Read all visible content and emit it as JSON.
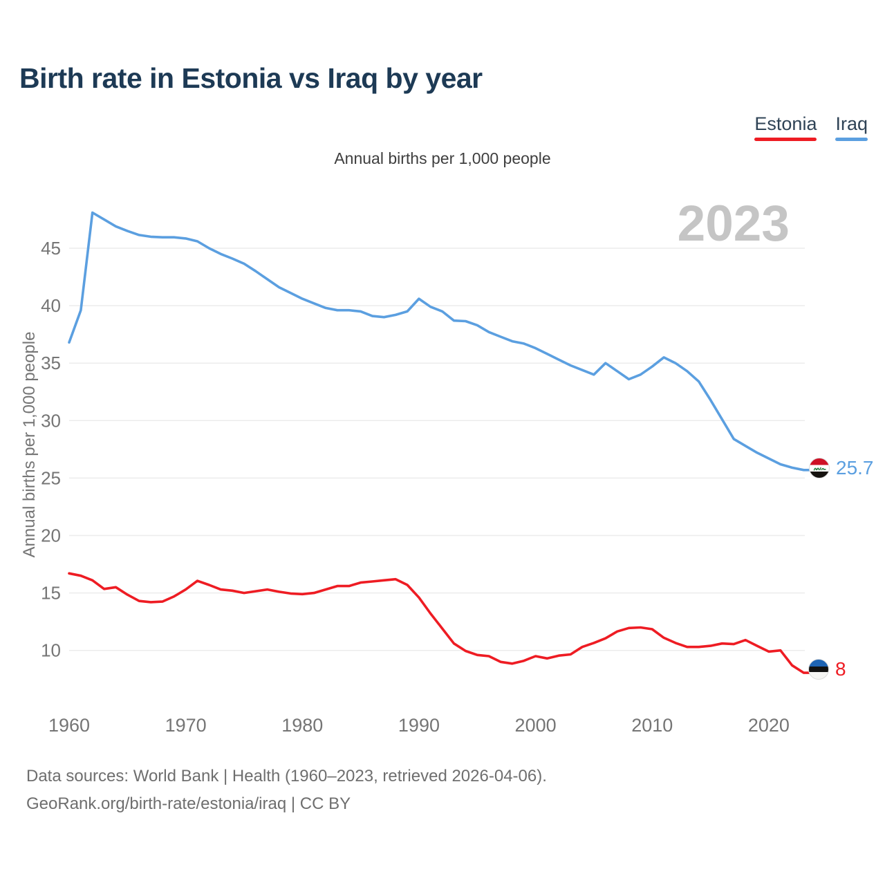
{
  "title": "Birth rate in Estonia vs Iraq by year",
  "subtitle": "Annual births per 1,000 people",
  "watermark_year": "2023",
  "y_axis_title": "Annual births per 1,000 people",
  "legend": {
    "items": [
      {
        "label": "Estonia",
        "color": "#EE1C23"
      },
      {
        "label": "Iraq",
        "color": "#5B9FE0"
      }
    ]
  },
  "end_labels": {
    "iraq": {
      "value": "25.7",
      "flag": "iraq-flag"
    },
    "estonia": {
      "value": "8",
      "flag": "estonia-flag"
    }
  },
  "footer": {
    "line1": "Data sources: World Bank | Health (1960–2023, retrieved 2026-04-06).",
    "line2": "GeoRank.org/birth-rate/estonia/iraq | CC BY"
  },
  "colors": {
    "iraq_line": "#5B9FE0",
    "estonia_line": "#EE1C23",
    "gridline": "#ECECEC",
    "tick_text": "#757575"
  },
  "chart_data": {
    "type": "line",
    "title": "Birth rate in Estonia vs Iraq by year",
    "subtitle": "Annual births per 1,000 people",
    "ylabel": "Annual births per 1,000 people",
    "xlabel": "",
    "grid": "horizontal",
    "legend_position": "top-right",
    "ylim": [
      6.5,
      49.5
    ],
    "yticks": [
      10,
      15,
      20,
      25,
      30,
      35,
      40,
      45
    ],
    "xticks": [
      1960,
      1970,
      1980,
      1990,
      2000,
      2010,
      2020
    ],
    "x": [
      1960,
      1961,
      1962,
      1963,
      1964,
      1965,
      1966,
      1967,
      1968,
      1969,
      1970,
      1971,
      1972,
      1973,
      1974,
      1975,
      1976,
      1977,
      1978,
      1979,
      1980,
      1981,
      1982,
      1983,
      1984,
      1985,
      1986,
      1987,
      1988,
      1989,
      1990,
      1991,
      1992,
      1993,
      1994,
      1995,
      1996,
      1997,
      1998,
      1999,
      2000,
      2001,
      2002,
      2003,
      2004,
      2005,
      2006,
      2007,
      2008,
      2009,
      2010,
      2011,
      2012,
      2013,
      2014,
      2015,
      2016,
      2017,
      2018,
      2019,
      2020,
      2021,
      2022,
      2023
    ],
    "series": [
      {
        "name": "Iraq",
        "color": "#5B9FE0",
        "end_value_label": "25.7",
        "values": [
          36.8,
          39.6,
          48.1,
          47.5,
          46.9,
          46.5,
          46.15,
          46.0,
          45.95,
          45.95,
          45.85,
          45.6,
          45.0,
          44.5,
          44.1,
          43.65,
          43.0,
          42.3,
          41.6,
          41.1,
          40.6,
          40.2,
          39.8,
          39.6,
          39.6,
          39.5,
          39.1,
          39.0,
          39.2,
          39.5,
          40.6,
          39.9,
          39.5,
          38.7,
          38.65,
          38.3,
          37.7,
          37.3,
          36.9,
          36.7,
          36.3,
          35.8,
          35.3,
          34.8,
          34.4,
          34.0,
          35.0,
          34.3,
          33.6,
          34.0,
          34.7,
          35.5,
          35.0,
          34.3,
          33.4,
          31.8,
          30.1,
          28.4,
          27.8,
          27.2,
          26.7,
          26.2,
          25.9,
          25.7
        ]
      },
      {
        "name": "Estonia",
        "color": "#EE1C23",
        "end_value_label": "8",
        "values": [
          16.7,
          16.5,
          16.1,
          15.35,
          15.5,
          14.85,
          14.3,
          14.2,
          14.25,
          14.7,
          15.3,
          16.05,
          15.7,
          15.3,
          15.2,
          15.0,
          15.15,
          15.3,
          15.1,
          14.95,
          14.9,
          15.0,
          15.3,
          15.6,
          15.6,
          15.9,
          16.0,
          16.1,
          16.2,
          15.7,
          14.6,
          13.2,
          11.9,
          10.6,
          9.95,
          9.6,
          9.5,
          9.0,
          8.85,
          9.1,
          9.5,
          9.3,
          9.55,
          9.65,
          10.3,
          10.65,
          11.05,
          11.65,
          11.95,
          12.0,
          11.85,
          11.1,
          10.65,
          10.3,
          10.3,
          10.4,
          10.6,
          10.55,
          10.9,
          10.4,
          9.9,
          10.0,
          8.7,
          8.05
        ]
      }
    ]
  }
}
